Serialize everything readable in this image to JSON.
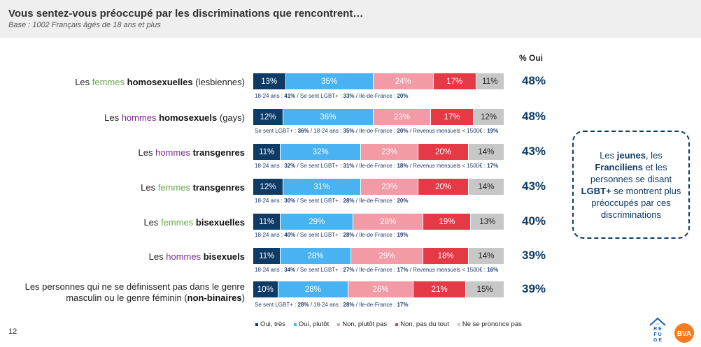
{
  "header": {
    "title": "Vous sentez-vous préoccupé par les discriminations que rencontrent…",
    "subtitle": "Base : 1002 Français âgés de 18 ans et plus"
  },
  "pct_header": "% Oui",
  "colors": {
    "oui_tres": "#0d3b66",
    "oui_plutot": "#48b3f0",
    "non_plutot_pas": "#f29aa6",
    "non_pas_du_tout": "#e63946",
    "ne_se_prononce_pas": "#c7c7c7"
  },
  "chart_data": {
    "type": "bar",
    "orientation": "horizontal",
    "stacked": true,
    "categories": [
      "Les femmes homosexuelles (lesbiennes)",
      "Les hommes homosexuels (gays)",
      "Les hommes transgenres",
      "Les femmes transgenres",
      "Les femmes bisexuelles",
      "Les hommes bisexuels",
      "Les personnes qui ne se définissent pas dans le genre masculin ou le genre féminin (non-binaires)"
    ],
    "series": [
      {
        "name": "Oui, très",
        "values": [
          13,
          12,
          11,
          12,
          11,
          11,
          10
        ]
      },
      {
        "name": "Oui, plutôt",
        "values": [
          35,
          36,
          32,
          31,
          29,
          28,
          28
        ]
      },
      {
        "name": "Non, plutôt pas",
        "values": [
          24,
          23,
          23,
          23,
          28,
          29,
          26
        ]
      },
      {
        "name": "Non, pas du tout",
        "values": [
          17,
          17,
          20,
          20,
          19,
          18,
          21
        ]
      },
      {
        "name": "Ne se prononce pas",
        "values": [
          11,
          12,
          14,
          14,
          13,
          14,
          15
        ]
      }
    ],
    "pct_oui": [
      "48%",
      "48%",
      "43%",
      "43%",
      "40%",
      "39%",
      "39%"
    ],
    "legend": [
      "Oui, très",
      "Oui, plutôt",
      "Non, plutôt pas",
      "Non, pas du tout",
      "Ne se prononce pas"
    ],
    "legend_placement": "bottom"
  },
  "rows": [
    {
      "label_parts": [
        {
          "t": "Les ",
          "c": ""
        },
        {
          "t": "femmes",
          "c": "w-green"
        },
        {
          "t": " ",
          "c": ""
        },
        {
          "t": "homosexuelles",
          "c": "b"
        },
        {
          "t": " (lesbiennes)",
          "c": ""
        }
      ],
      "detail_parts": [
        {
          "t": "18-24 ans : ",
          "b": false
        },
        {
          "t": "41%",
          "b": true
        },
        {
          "t": " / Se sent LGBT+ : ",
          "b": false
        },
        {
          "t": "33%",
          "b": true
        },
        {
          "t": " / Ile-de-France : ",
          "b": false
        },
        {
          "t": "20%",
          "b": true
        }
      ]
    },
    {
      "label_parts": [
        {
          "t": "Les ",
          "c": ""
        },
        {
          "t": "hommes",
          "c": "w-purple"
        },
        {
          "t": " ",
          "c": ""
        },
        {
          "t": "homosexuels",
          "c": "b"
        },
        {
          "t": " (gays)",
          "c": ""
        }
      ],
      "detail_parts": [
        {
          "t": "Se sent LGBT+ : ",
          "b": false
        },
        {
          "t": "36%",
          "b": true
        },
        {
          "t": " / 18-24 ans : ",
          "b": false
        },
        {
          "t": "35%",
          "b": true
        },
        {
          "t": " / Ile-de-France : ",
          "b": false
        },
        {
          "t": "20%",
          "b": true
        },
        {
          "t": " / Revenus mensuels < 1500€ : ",
          "b": false
        },
        {
          "t": "19%",
          "b": true
        }
      ]
    },
    {
      "label_parts": [
        {
          "t": "Les ",
          "c": ""
        },
        {
          "t": "hommes",
          "c": "w-purple"
        },
        {
          "t": " ",
          "c": ""
        },
        {
          "t": "transgenres",
          "c": "b"
        }
      ],
      "detail_parts": [
        {
          "t": "18-24 ans : ",
          "b": false
        },
        {
          "t": "32%",
          "b": true
        },
        {
          "t": " / Se sent LGBT+ : ",
          "b": false
        },
        {
          "t": "31%",
          "b": true
        },
        {
          "t": " / Ile-de-France : ",
          "b": false
        },
        {
          "t": "18%",
          "b": true
        },
        {
          "t": " / Revenus mensuels < 1500€ : ",
          "b": false
        },
        {
          "t": "17%",
          "b": true
        }
      ]
    },
    {
      "label_parts": [
        {
          "t": "Les ",
          "c": ""
        },
        {
          "t": "femmes",
          "c": "w-green"
        },
        {
          "t": " ",
          "c": ""
        },
        {
          "t": "transgenres",
          "c": "b"
        }
      ],
      "detail_parts": [
        {
          "t": "18-24 ans : ",
          "b": false
        },
        {
          "t": "30%",
          "b": true
        },
        {
          "t": " / Se sent LGBT+ : ",
          "b": false
        },
        {
          "t": "28%",
          "b": true
        },
        {
          "t": " / Ile-de-France : ",
          "b": false
        },
        {
          "t": "20%",
          "b": true
        }
      ]
    },
    {
      "label_parts": [
        {
          "t": "Les ",
          "c": ""
        },
        {
          "t": "femmes",
          "c": "w-green"
        },
        {
          "t": " ",
          "c": ""
        },
        {
          "t": "bisexuelles",
          "c": "b"
        }
      ],
      "detail_parts": [
        {
          "t": "18-24 ans : ",
          "b": false
        },
        {
          "t": "40%",
          "b": true
        },
        {
          "t": " / Se sent LGBT+ : ",
          "b": false
        },
        {
          "t": "28%",
          "b": true
        },
        {
          "t": " / Ile-de-France : ",
          "b": false
        },
        {
          "t": "19%",
          "b": true
        }
      ]
    },
    {
      "label_parts": [
        {
          "t": "Les ",
          "c": ""
        },
        {
          "t": "hommes",
          "c": "w-purple"
        },
        {
          "t": " ",
          "c": ""
        },
        {
          "t": "bisexuels",
          "c": "b"
        }
      ],
      "detail_parts": [
        {
          "t": "18-24 ans : ",
          "b": false
        },
        {
          "t": "34%",
          "b": true
        },
        {
          "t": " / Se sent LGBT+ : ",
          "b": false
        },
        {
          "t": "27%",
          "b": true
        },
        {
          "t": " / Ile-de-France : ",
          "b": false
        },
        {
          "t": "17%",
          "b": true
        },
        {
          "t": " / Revenus mensuels < 1500€ : ",
          "b": false
        },
        {
          "t": "16%",
          "b": true
        }
      ]
    },
    {
      "label_parts": [
        {
          "t": "Les personnes qui ne se définissent pas dans le genre masculin ou le genre féminin (",
          "c": ""
        },
        {
          "t": "non-binaires",
          "c": "b"
        },
        {
          "t": ")",
          "c": ""
        }
      ],
      "detail_parts": [
        {
          "t": "Se sent LGBT+ : ",
          "b": false
        },
        {
          "t": "28%",
          "b": true
        },
        {
          "t": " / 18-24 ans : ",
          "b": false
        },
        {
          "t": "28%",
          "b": true
        },
        {
          "t": " / Ile-de-France : ",
          "b": false
        },
        {
          "t": "17%",
          "b": true
        }
      ]
    }
  ],
  "callout": {
    "parts": [
      {
        "t": "Les ",
        "b": false
      },
      {
        "t": "jeunes",
        "b": true
      },
      {
        "t": ", les ",
        "b": false
      },
      {
        "t": "Franciliens",
        "b": true
      },
      {
        "t": " et les personnes se disant ",
        "b": false
      },
      {
        "t": "LGBT+",
        "b": true
      },
      {
        "t": " se montrent plus préoccupés par ces discriminations",
        "b": false
      }
    ]
  },
  "page_number": "12",
  "logos": {
    "refuge_text": "LE REFUGE",
    "bva_text": "BVA"
  }
}
